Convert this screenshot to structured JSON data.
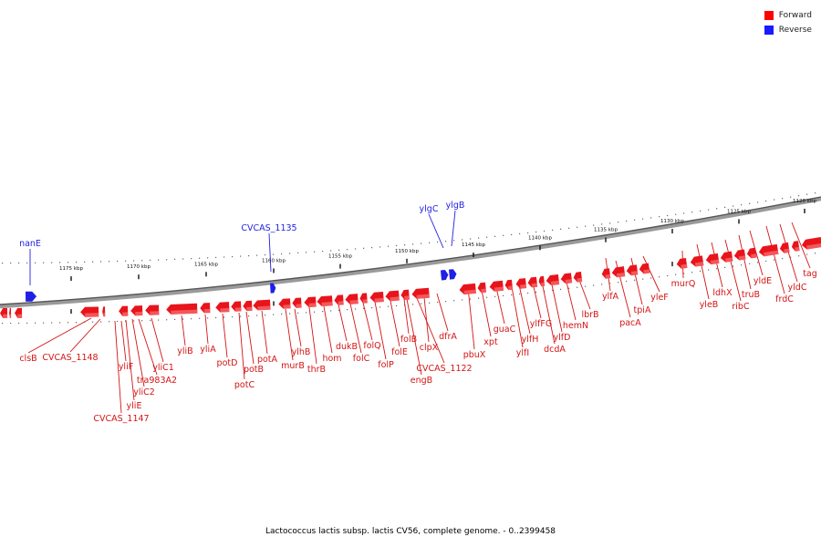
{
  "legend": [
    {
      "label": "Forward",
      "color": "#ff0000"
    },
    {
      "label": "Reverse",
      "color": "#1a1aff"
    }
  ],
  "caption": "Lactococcus lactis subsp. lactis CV56, complete genome. - 0..2399458",
  "ticks": [
    "1120 kbp",
    "1125 kbp",
    "1130 kbp",
    "1135 kbp",
    "1140 kbp",
    "1145 kbp",
    "1150 kbp",
    "1155 kbp",
    "1160 kbp",
    "1165 kbp",
    "1170 kbp",
    "1175 kbp"
  ],
  "forward_color": "#e8141b",
  "reverse_color": "#1f1fe6",
  "genes": [
    {
      "name": "nanE",
      "strand": "reverse"
    },
    {
      "name": "CVCAS_1135",
      "strand": "reverse"
    },
    {
      "name": "ylgC",
      "strand": "reverse"
    },
    {
      "name": "ylgB",
      "strand": "reverse"
    },
    {
      "name": "clsB",
      "strand": "forward"
    },
    {
      "name": "CVCAS_1148",
      "strand": "forward"
    },
    {
      "name": "CVCAS_1147",
      "strand": "forward"
    },
    {
      "name": "yliF",
      "strand": "forward"
    },
    {
      "name": "yliE",
      "strand": "forward"
    },
    {
      "name": "yliC2",
      "strand": "forward"
    },
    {
      "name": "tra983A2",
      "strand": "forward"
    },
    {
      "name": "yliC1",
      "strand": "forward"
    },
    {
      "name": "yliB",
      "strand": "forward"
    },
    {
      "name": "yliA",
      "strand": "forward"
    },
    {
      "name": "potD",
      "strand": "forward"
    },
    {
      "name": "potC",
      "strand": "forward"
    },
    {
      "name": "potB",
      "strand": "forward"
    },
    {
      "name": "potA",
      "strand": "forward"
    },
    {
      "name": "murB",
      "strand": "forward"
    },
    {
      "name": "ylhB",
      "strand": "forward"
    },
    {
      "name": "thrB",
      "strand": "forward"
    },
    {
      "name": "hom",
      "strand": "forward"
    },
    {
      "name": "dukB",
      "strand": "forward"
    },
    {
      "name": "folC",
      "strand": "forward"
    },
    {
      "name": "folQ",
      "strand": "forward"
    },
    {
      "name": "folP",
      "strand": "forward"
    },
    {
      "name": "folE",
      "strand": "forward"
    },
    {
      "name": "folB",
      "strand": "forward"
    },
    {
      "name": "engB",
      "strand": "forward"
    },
    {
      "name": "CVCAS_1122",
      "strand": "forward"
    },
    {
      "name": "clpX",
      "strand": "forward"
    },
    {
      "name": "dfrA",
      "strand": "forward"
    },
    {
      "name": "pbuX",
      "strand": "forward"
    },
    {
      "name": "xpt",
      "strand": "forward"
    },
    {
      "name": "guaC",
      "strand": "forward"
    },
    {
      "name": "ylfI",
      "strand": "forward"
    },
    {
      "name": "ylfH",
      "strand": "forward"
    },
    {
      "name": "ylfFG",
      "strand": "forward"
    },
    {
      "name": "dcdA",
      "strand": "forward"
    },
    {
      "name": "ylfD",
      "strand": "forward"
    },
    {
      "name": "hemN",
      "strand": "forward"
    },
    {
      "name": "lbrB",
      "strand": "forward"
    },
    {
      "name": "ylfA",
      "strand": "forward"
    },
    {
      "name": "pacA",
      "strand": "forward"
    },
    {
      "name": "tpiA",
      "strand": "forward"
    },
    {
      "name": "yleF",
      "strand": "forward"
    },
    {
      "name": "murQ",
      "strand": "forward"
    },
    {
      "name": "yleB",
      "strand": "forward"
    },
    {
      "name": "ldhX",
      "strand": "forward"
    },
    {
      "name": "ribC",
      "strand": "forward"
    },
    {
      "name": "truB",
      "strand": "forward"
    },
    {
      "name": "yldE",
      "strand": "forward"
    },
    {
      "name": "frdC",
      "strand": "forward"
    },
    {
      "name": "yldC",
      "strand": "forward"
    },
    {
      "name": "tag",
      "strand": "forward"
    }
  ]
}
